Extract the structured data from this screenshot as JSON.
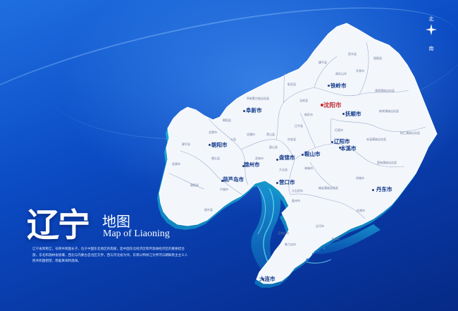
{
  "compass": {
    "north": "北",
    "south": "南"
  },
  "title": {
    "cn_main": "辽宁",
    "cn_sub": "地图",
    "en": "Map of Liaoning"
  },
  "intro": "辽宁省简称辽，号称共和国长子，位于中国东北地区的南部，是中国东北经济区和环渤海经济区的重要结合部，东北和渤林省接壤，西北与内蒙古自治区交界，西与河北省为邻，东南以鸭绿江为界河与朝鲜民主主义人民共和国相望，南临黄海和渤海。",
  "cities": [
    {
      "name": "沈阳市",
      "capital": true
    },
    {
      "name": "铁岭市",
      "capital": false
    },
    {
      "name": "抚顺市",
      "capital": false
    },
    {
      "name": "阜新市",
      "capital": false
    },
    {
      "name": "朝阳市",
      "capital": false
    },
    {
      "name": "辽阳市",
      "capital": false
    },
    {
      "name": "本溪市",
      "capital": false
    },
    {
      "name": "鞍山市",
      "capital": false
    },
    {
      "name": "盘锦市",
      "capital": false
    },
    {
      "name": "锦州市",
      "capital": false
    },
    {
      "name": "葫芦岛市",
      "capital": false
    },
    {
      "name": "营口市",
      "capital": false
    },
    {
      "name": "丹东市",
      "capital": false
    },
    {
      "name": "大连市",
      "capital": false
    }
  ],
  "counties": [
    "西丰县",
    "昌图县",
    "开原市",
    "调兵山市",
    "康平县",
    "法库县",
    "新民市",
    "彰武县",
    "阜新蒙古族自治县",
    "黑山县",
    "北镇市",
    "义县",
    "北票市",
    "朝阳县",
    "建平县",
    "喀左县",
    "凌源市",
    "建昌县",
    "兴城市",
    "绥中县",
    "凌海市",
    "台安县",
    "辽中县",
    "灯塔市",
    "新宾满族自治县",
    "清原满族自治县",
    "本溪满族自治县",
    "桓仁满族自治县",
    "宽甸满族自治县",
    "凤城市",
    "东港市",
    "岫岩满族自治县",
    "海城市",
    "大石桥市",
    "盖州市",
    "瓦房店市",
    "普兰店市",
    "庄河市",
    "长海县",
    "大洼县",
    "盘山县",
    "铁岭县",
    "抚顺县",
    "辽阳县",
    "台安"
  ],
  "colors": {
    "map_fill": "#f3f6fb",
    "extrude": "#1cc3d6",
    "border": "#8fa3c4",
    "capital": "#c0282e",
    "city": "#123a8a"
  }
}
